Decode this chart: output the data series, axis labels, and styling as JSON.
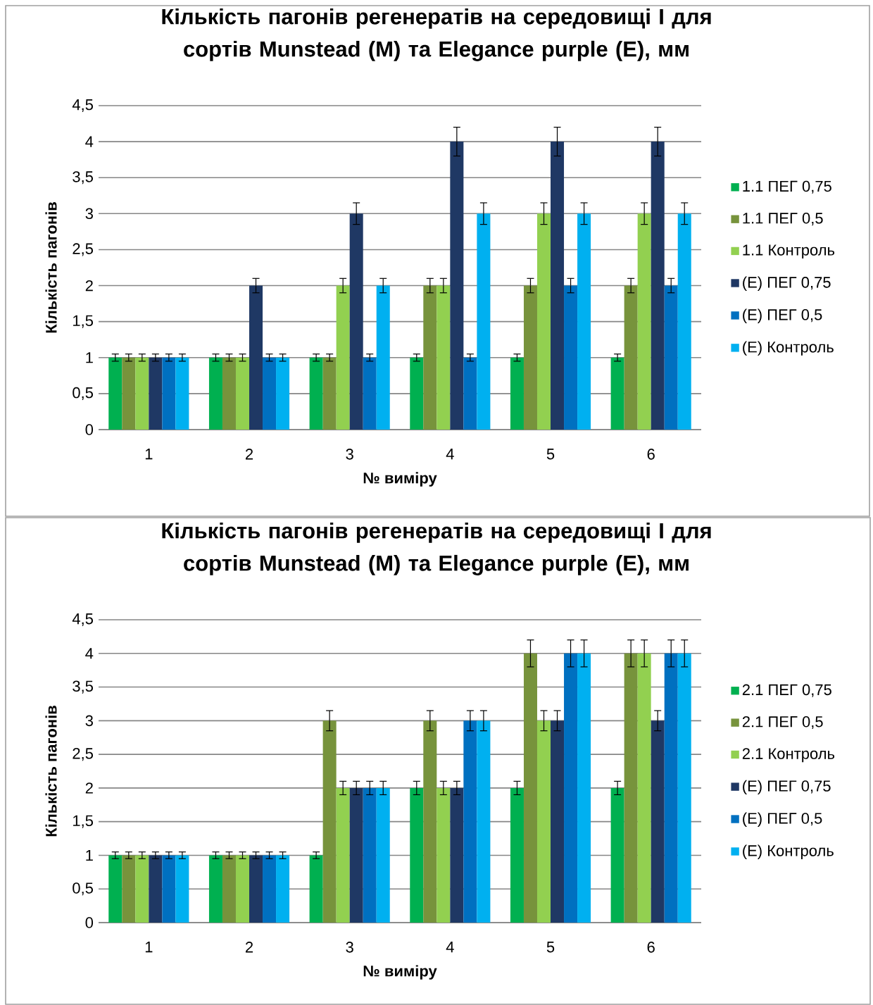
{
  "chart_data": [
    {
      "type": "bar",
      "title": "Кількість пагонів регенератів на середовищі І для сортів Munstead (M) та Elegance  purple (E), мм",
      "xlabel": "№ виміру",
      "ylabel": "Кількість пагонів",
      "categories": [
        "1",
        "2",
        "3",
        "4",
        "5",
        "6"
      ],
      "ylim": [
        0,
        4.5
      ],
      "yticks": [
        0,
        {
          "value": 0.5,
          "label": "0,5"
        },
        1,
        {
          "value": 1.5,
          "label": "1,5"
        },
        2,
        {
          "value": 2.5,
          "label": "2,5"
        },
        3,
        {
          "value": 3.5,
          "label": "3,5"
        },
        4,
        {
          "value": 4.5,
          "label": "4,5"
        }
      ],
      "grid": "y",
      "legend": "right",
      "series": [
        {
          "name": "1.1 ПЕГ 0,75",
          "color": "#00b050",
          "values": [
            1,
            1,
            1,
            1,
            1,
            1
          ],
          "errors": [
            0.05,
            0.05,
            0.05,
            0.05,
            0.05,
            0.05
          ]
        },
        {
          "name": "1.1 ПЕГ 0,5",
          "color": "#77933c",
          "values": [
            1,
            1,
            1,
            2,
            2,
            2
          ],
          "errors": [
            0.05,
            0.05,
            0.05,
            0.1,
            0.1,
            0.1
          ]
        },
        {
          "name": "1.1 Контроль",
          "color": "#92d050",
          "values": [
            1,
            1,
            2,
            2,
            3,
            3
          ],
          "errors": [
            0.05,
            0.05,
            0.1,
            0.1,
            0.15,
            0.15
          ]
        },
        {
          "name": "(Е) ПЕГ 0,75",
          "color": "#1f3864",
          "values": [
            1,
            2,
            3,
            4,
            4,
            4
          ],
          "errors": [
            0.05,
            0.1,
            0.15,
            0.2,
            0.2,
            0.2
          ]
        },
        {
          "name": "(Е) ПЕГ 0,5",
          "color": "#0070c0",
          "values": [
            1,
            1,
            1,
            1,
            2,
            2
          ],
          "errors": [
            0.05,
            0.05,
            0.05,
            0.05,
            0.1,
            0.1
          ]
        },
        {
          "name": "(Е) Контроль",
          "color": "#00b0f0",
          "values": [
            1,
            1,
            2,
            3,
            3,
            3
          ],
          "errors": [
            0.05,
            0.05,
            0.1,
            0.15,
            0.15,
            0.15
          ]
        }
      ]
    },
    {
      "type": "bar",
      "title": "Кількість пагонів регенератів на середовищі І для сортів Munstead (M) та Elegance  purple (E), мм",
      "xlabel": "№ виміру",
      "ylabel": "Кількість пагонів",
      "categories": [
        "1",
        "2",
        "3",
        "4",
        "5",
        "6"
      ],
      "ylim": [
        0,
        4.5
      ],
      "yticks": [
        0,
        {
          "value": 0.5,
          "label": "0,5"
        },
        1,
        {
          "value": 1.5,
          "label": "1,5"
        },
        2,
        {
          "value": 2.5,
          "label": "2,5"
        },
        3,
        {
          "value": 3.5,
          "label": "3,5"
        },
        4,
        {
          "value": 4.5,
          "label": "4,5"
        }
      ],
      "grid": "y",
      "legend": "right",
      "series": [
        {
          "name": "2.1 ПЕГ 0,75",
          "color": "#00b050",
          "values": [
            1,
            1,
            1,
            2,
            2,
            2
          ],
          "errors": [
            0.05,
            0.05,
            0.05,
            0.1,
            0.1,
            0.1
          ]
        },
        {
          "name": "2.1 ПЕГ 0,5",
          "color": "#77933c",
          "values": [
            1,
            1,
            3,
            3,
            4,
            4
          ],
          "errors": [
            0.05,
            0.05,
            0.15,
            0.15,
            0.2,
            0.2
          ]
        },
        {
          "name": "2.1 Контроль",
          "color": "#92d050",
          "values": [
            1,
            1,
            2,
            2,
            3,
            4
          ],
          "errors": [
            0.05,
            0.05,
            0.1,
            0.1,
            0.15,
            0.2
          ]
        },
        {
          "name": "(Е) ПЕГ 0,75",
          "color": "#1f3864",
          "values": [
            1,
            1,
            2,
            2,
            3,
            3
          ],
          "errors": [
            0.05,
            0.05,
            0.1,
            0.1,
            0.15,
            0.15
          ]
        },
        {
          "name": "(Е) ПЕГ 0,5",
          "color": "#0070c0",
          "values": [
            1,
            1,
            2,
            3,
            4,
            4
          ],
          "errors": [
            0.05,
            0.05,
            0.1,
            0.15,
            0.2,
            0.2
          ]
        },
        {
          "name": "(Е) Контроль",
          "color": "#00b0f0",
          "values": [
            1,
            1,
            2,
            3,
            4,
            4
          ],
          "errors": [
            0.05,
            0.05,
            0.1,
            0.15,
            0.2,
            0.2
          ]
        }
      ]
    }
  ]
}
